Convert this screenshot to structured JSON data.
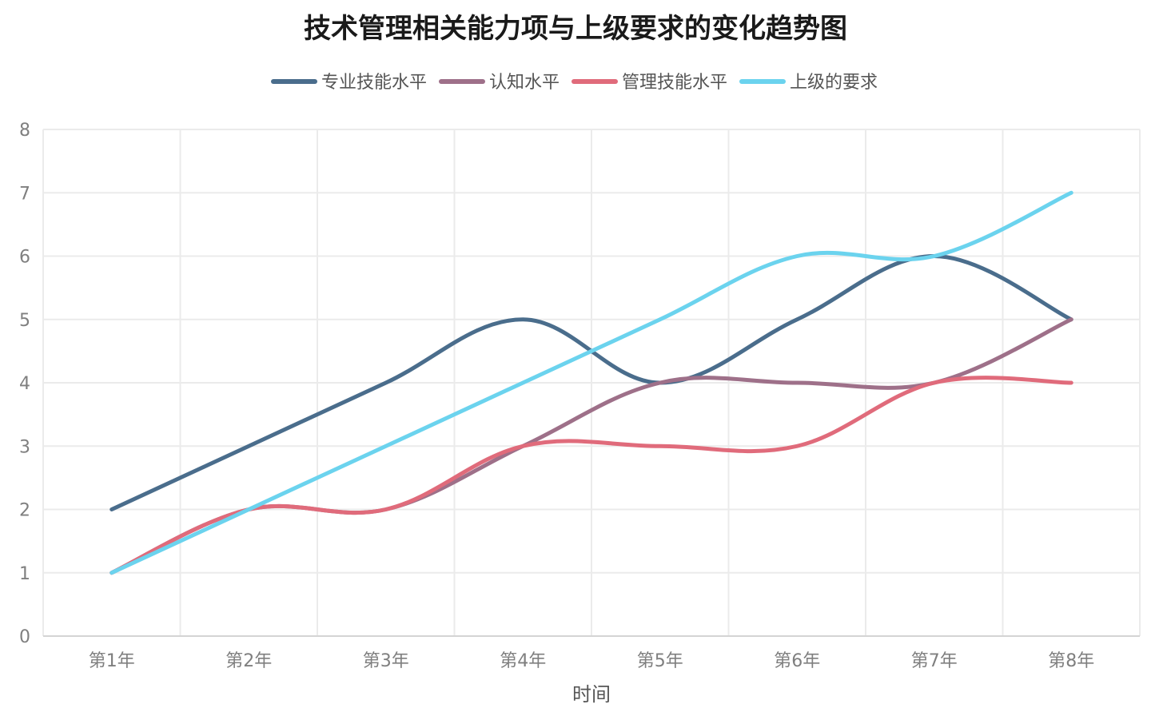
{
  "chart_data": {
    "type": "line",
    "title": "技术管理相关能力项与上级要求的变化趋势图",
    "xlabel": "时间",
    "ylabel": "",
    "categories": [
      "第1年",
      "第2年",
      "第3年",
      "第4年",
      "第5年",
      "第6年",
      "第7年",
      "第8年"
    ],
    "ylim": [
      0,
      8
    ],
    "yticks": [
      "0",
      "1",
      "2",
      "3",
      "4",
      "5",
      "6",
      "7",
      "8"
    ],
    "grid": true,
    "legend_position": "top-center",
    "smooth": true,
    "series": [
      {
        "name": "专业技能水平",
        "color": "#4a6d8c",
        "values": [
          2,
          3,
          4,
          5,
          4,
          5,
          6,
          5
        ]
      },
      {
        "name": "认知水平",
        "color": "#9e7089",
        "values": [
          1,
          2,
          2,
          3,
          4,
          4,
          4,
          5
        ]
      },
      {
        "name": "管理技能水平",
        "color": "#e06b7b",
        "values": [
          1,
          2,
          2,
          3,
          3,
          3,
          4,
          4
        ]
      },
      {
        "name": "上级的要求",
        "color": "#6bd3ee",
        "values": [
          1,
          2,
          3,
          4,
          5,
          6,
          6,
          7
        ]
      }
    ]
  }
}
